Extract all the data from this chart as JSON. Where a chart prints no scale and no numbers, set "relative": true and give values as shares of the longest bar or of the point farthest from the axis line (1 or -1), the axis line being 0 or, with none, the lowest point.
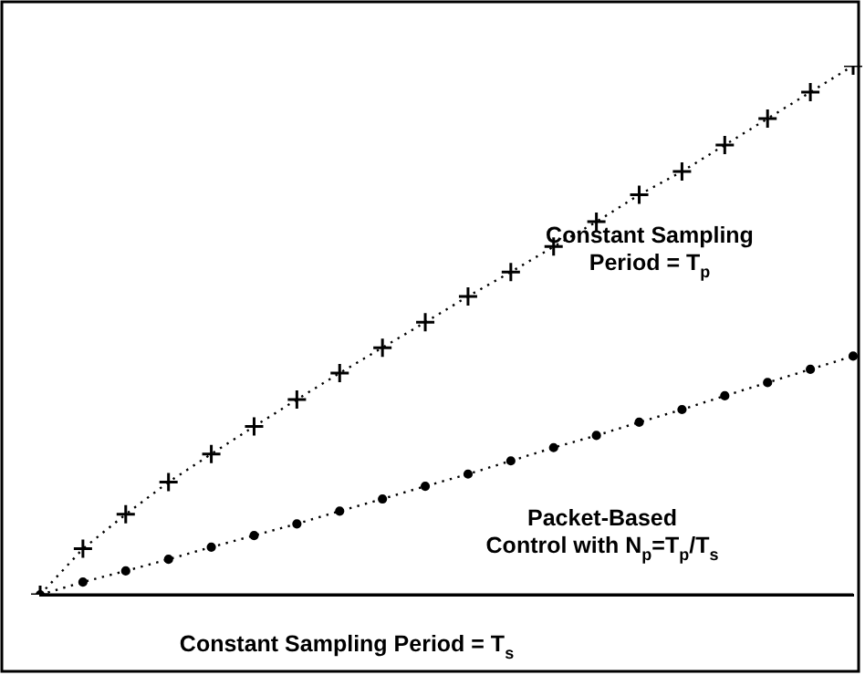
{
  "chart_data": {
    "type": "line",
    "relative": true,
    "grid": false,
    "legend": false,
    "categories": [
      null,
      null,
      null,
      null,
      null,
      null,
      null,
      null,
      null,
      null,
      null,
      null,
      null,
      null,
      null,
      null,
      null,
      null,
      null,
      null
    ],
    "series": [
      {
        "name": "Constant Sampling Period = T$_{p}$",
        "color": "#000000",
        "marker": "cross",
        "line_style": "dotted",
        "values": [
          0,
          0.087,
          0.152,
          0.213,
          0.266,
          0.318,
          0.369,
          0.419,
          0.467,
          0.515,
          0.564,
          0.61,
          0.658,
          0.705,
          0.756,
          0.8,
          0.85,
          0.9,
          0.95,
          1
        ]
      },
      {
        "name": "Packet-Based Control with N$_{p}$=T$_{p}$/T$_{s}$",
        "color": "#000000",
        "marker": "circle",
        "line_style": "dotted",
        "values": [
          0,
          0.024,
          0.045,
          0.067,
          0.09,
          0.112,
          0.134,
          0.158,
          0.181,
          0.205,
          0.228,
          0.253,
          0.278,
          0.301,
          0.326,
          0.35,
          0.376,
          0.401,
          0.426,
          0.451
        ]
      },
      {
        "name": "Constant Sampling Period = T$_{s}$",
        "color": "#000000",
        "marker": "none",
        "line_style": "solid",
        "values": [
          0,
          0,
          0,
          0,
          0,
          0,
          0,
          0,
          0,
          0,
          0,
          0,
          0,
          0,
          0,
          0,
          0,
          0,
          0,
          0
        ]
      }
    ]
  }
}
